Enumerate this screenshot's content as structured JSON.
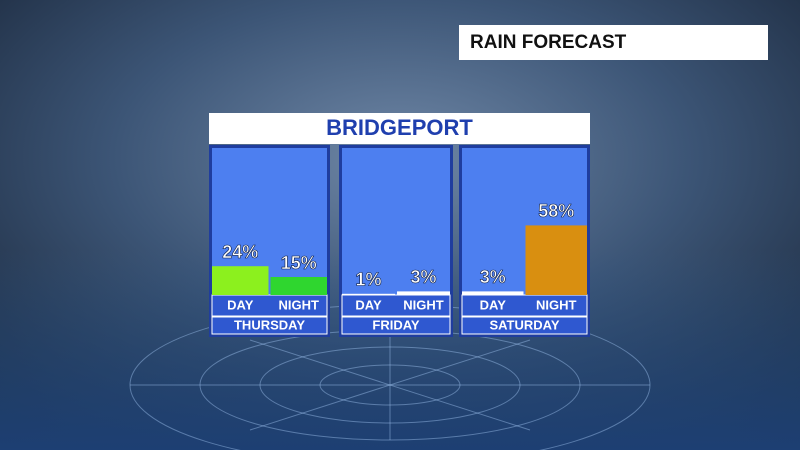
{
  "header": "RAIN FORECAST",
  "chart_data": {
    "type": "bar",
    "title": "BRIDGEPORT",
    "groups": [
      "THURSDAY",
      "FRIDAY",
      "SATURDAY"
    ],
    "categories": [
      "DAY",
      "NIGHT",
      "DAY",
      "NIGHT",
      "DAY",
      "NIGHT"
    ],
    "values": [
      24,
      15,
      1,
      3,
      3,
      58
    ],
    "value_labels": [
      "24%",
      "15%",
      "1%",
      "3%",
      "3%",
      "58%"
    ],
    "colors": [
      "#8cf01e",
      "#2fd62f",
      "#ffffff",
      "#ffffff",
      "#ffffff",
      "#d98f10"
    ]
  }
}
